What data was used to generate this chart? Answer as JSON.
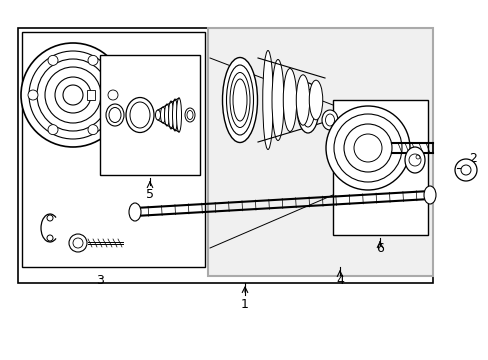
{
  "bg_color": "#ffffff",
  "line_color": "#000000",
  "gray_box_color": "#aaaaaa",
  "gray_fill": "#f0f0f0",
  "figsize": [
    4.89,
    3.6
  ],
  "dpi": 100
}
